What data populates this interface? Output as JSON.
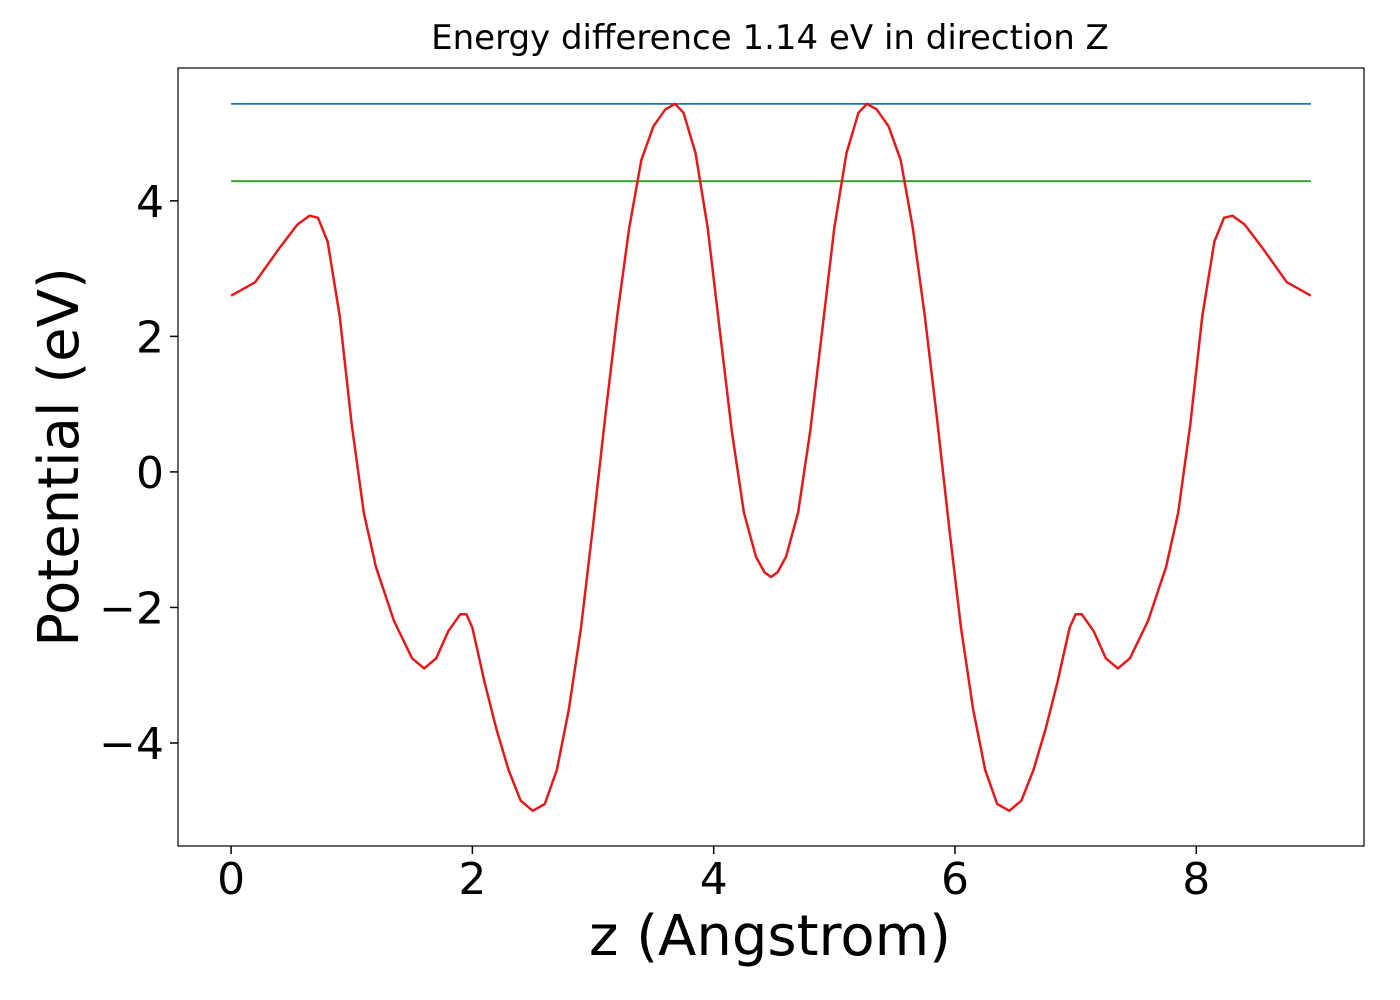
{
  "chart_data": {
    "type": "line",
    "title": "Energy difference 1.14 eV in direction Z",
    "x_label": "z (Angstrom)",
    "y_label": "Potential (eV)",
    "xlim": [
      -0.44,
      9.39
    ],
    "ylim": [
      -5.52,
      5.96
    ],
    "xticks": [
      0,
      2,
      4,
      6,
      8
    ],
    "yticks": [
      {
        "value": -4,
        "label": "−4"
      },
      {
        "value": -2,
        "label": "−2"
      },
      0,
      2,
      4
    ],
    "series": [
      {
        "color": "#1f77b4",
        "x": [
          0,
          8.95
        ],
        "values": [
          5.43,
          5.43
        ]
      },
      {
        "color": "#2ca02c",
        "x": [
          0,
          8.95
        ],
        "values": [
          4.29,
          4.29
        ]
      },
      {
        "color": "#e31a1c",
        "x": [
          0,
          0.2,
          0.4,
          0.55,
          0.65,
          0.72,
          0.8,
          0.9,
          1.0,
          1.1,
          1.2,
          1.35,
          1.5,
          1.6,
          1.7,
          1.8,
          1.9,
          1.95,
          2.0,
          2.1,
          2.2,
          2.3,
          2.4,
          2.5,
          2.6,
          2.7,
          2.8,
          2.9,
          3.0,
          3.1,
          3.2,
          3.3,
          3.4,
          3.5,
          3.6,
          3.68,
          3.75,
          3.85,
          3.95,
          4.05,
          4.15,
          4.25,
          4.35,
          4.42,
          4.475,
          4.53,
          4.6,
          4.7,
          4.8,
          4.9,
          5.0,
          5.1,
          5.2,
          5.27,
          5.35,
          5.45,
          5.55,
          5.65,
          5.75,
          5.85,
          5.95,
          6.05,
          6.15,
          6.25,
          6.35,
          6.45,
          6.55,
          6.65,
          6.75,
          6.85,
          6.95,
          7.0,
          7.05,
          7.15,
          7.25,
          7.35,
          7.45,
          7.6,
          7.75,
          7.85,
          7.95,
          8.05,
          8.15,
          8.23,
          8.3,
          8.4,
          8.55,
          8.75,
          8.95
        ],
        "values": [
          2.6,
          2.8,
          3.3,
          3.65,
          3.78,
          3.75,
          3.4,
          2.3,
          0.7,
          -0.6,
          -1.4,
          -2.2,
          -2.75,
          -2.9,
          -2.75,
          -2.35,
          -2.1,
          -2.1,
          -2.3,
          -3.1,
          -3.8,
          -4.4,
          -4.85,
          -5.0,
          -4.9,
          -4.4,
          -3.5,
          -2.3,
          -0.8,
          0.8,
          2.3,
          3.6,
          4.6,
          5.1,
          5.35,
          5.43,
          5.3,
          4.7,
          3.6,
          2.1,
          0.6,
          -0.6,
          -1.25,
          -1.48,
          -1.55,
          -1.48,
          -1.25,
          -0.6,
          0.6,
          2.1,
          3.6,
          4.7,
          5.3,
          5.43,
          5.35,
          5.1,
          4.6,
          3.6,
          2.3,
          0.8,
          -0.8,
          -2.3,
          -3.5,
          -4.4,
          -4.9,
          -5.0,
          -4.85,
          -4.4,
          -3.8,
          -3.1,
          -2.3,
          -2.1,
          -2.1,
          -2.35,
          -2.75,
          -2.9,
          -2.75,
          -2.2,
          -1.4,
          -0.6,
          0.7,
          2.3,
          3.4,
          3.75,
          3.78,
          3.65,
          3.3,
          2.8,
          2.6
        ]
      }
    ]
  }
}
